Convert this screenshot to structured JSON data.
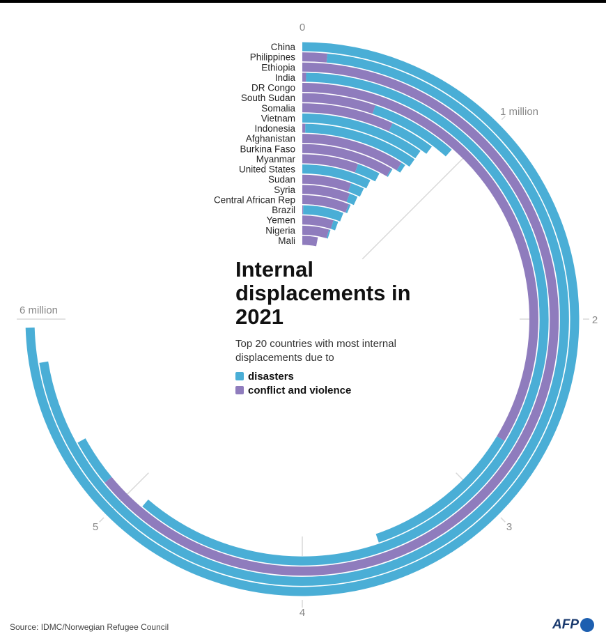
{
  "chart_data": {
    "type": "radial-bar",
    "title": "Internal displacements in 2021",
    "subtitle": "Top 20 countries with most internal displacements due to",
    "legend": [
      {
        "name": "disasters",
        "color": "#4aaed6"
      },
      {
        "name": "conflict and violence",
        "color": "#8f7cbd"
      }
    ],
    "axis": {
      "min": 0,
      "max": 8,
      "unit": "million",
      "ticks": [
        {
          "value": 0,
          "label": "0"
        },
        {
          "value": 1,
          "label": "1 million"
        },
        {
          "value": 2,
          "label": "2"
        },
        {
          "value": 3,
          "label": "3"
        },
        {
          "value": 4,
          "label": "4"
        },
        {
          "value": 5,
          "label": "5"
        },
        {
          "value": 6,
          "label": "6 million"
        }
      ]
    },
    "categories": [
      "China",
      "Philippines",
      "Ethiopia",
      "India",
      "DR Congo",
      "South Sudan",
      "Somalia",
      "Vietnam",
      "Indonesia",
      "Afghanistan",
      "Burkina Faso",
      "Myanmar",
      "United States",
      "Sudan",
      "Syria",
      "Central African Rep",
      "Brazil",
      "Yemen",
      "Nigeria",
      "Mali"
    ],
    "series": [
      {
        "name": "conflict and violence",
        "values": [
          0,
          0.12,
          5.12,
          0.02,
          2.69,
          0.42,
          0.55,
          0,
          0.02,
          0.72,
          0.68,
          0.44,
          0,
          0.44,
          0.46,
          0.49,
          0.01,
          0.39,
          0.37,
          0.24
        ]
      },
      {
        "name": "disasters",
        "values": [
          5.96,
          5.67,
          0.24,
          4.88,
          0.89,
          0.5,
          0.27,
          0.78,
          0.76,
          0.03,
          0.01,
          0.18,
          0.58,
          0.12,
          0.08,
          0.02,
          0.46,
          0.06,
          0.02,
          0
        ]
      }
    ]
  },
  "source": "Source: IDMC/Norwegian Refugee Council",
  "logo": "AFP"
}
